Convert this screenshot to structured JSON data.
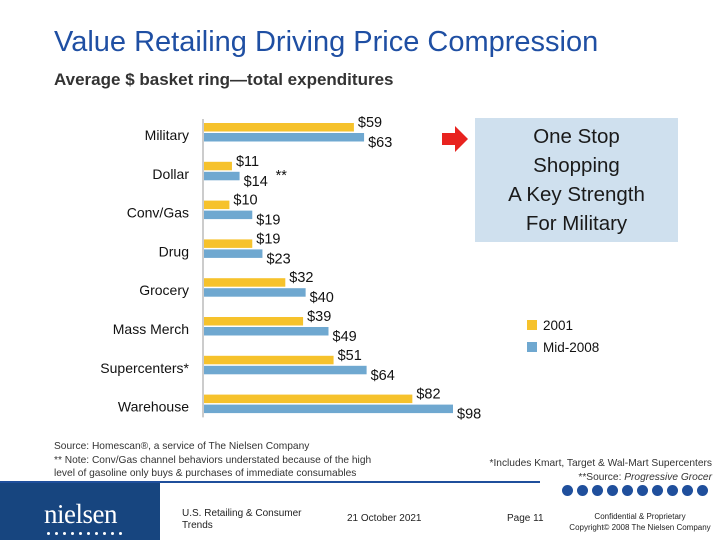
{
  "title": "Value Retailing Driving Price Compression",
  "subtitle": "Average $ basket ring—total expenditures",
  "chart_data": {
    "type": "bar",
    "orientation": "horizontal",
    "categories": [
      "Military",
      "Dollar",
      "Conv/Gas",
      "Drug",
      "Grocery",
      "Mass Merch",
      "Supercenters*",
      "Warehouse"
    ],
    "series": [
      {
        "name": "2001",
        "color": "#f6c22c",
        "values": [
          59,
          11,
          10,
          19,
          32,
          39,
          51,
          82
        ],
        "labels": [
          "$59",
          "$11",
          "$10",
          "$19",
          "$32",
          "$39",
          "$51",
          "$82"
        ]
      },
      {
        "name": "Mid-2008",
        "color": "#6fa8d0",
        "values": [
          63,
          14,
          19,
          23,
          40,
          49,
          64,
          98
        ],
        "labels": [
          "$63",
          "$14",
          "$19",
          "$23",
          "$40",
          "$49",
          "$64",
          "$98"
        ]
      }
    ],
    "annotations": [
      {
        "category": "Dollar",
        "text": "**"
      }
    ],
    "xlim": [
      0,
      100
    ],
    "grid": false,
    "legend": "right"
  },
  "callout": {
    "lines": [
      "One Stop",
      "Shopping",
      "A Key Strength",
      "For Military"
    ]
  },
  "legend": {
    "items": [
      "2001",
      "Mid-2008"
    ]
  },
  "notes": {
    "source": "Source: Homescan®, a service of The Nielsen Company",
    "note_line1": "** Note:  Conv/Gas channel behaviors understated because of the high",
    "note_line2": "level of gasoline only buys & purchases of immediate consumables",
    "includes": "*Includes Kmart, Target & Wal-Mart Supercenters",
    "source2_prefix": "**Source:  ",
    "source2_name": "Progressive Grocer"
  },
  "footer": {
    "logo": "nielsen",
    "dept_line1": "U.S. Retailing & Consumer",
    "dept_line2": "Trends",
    "date": "21 October 2021",
    "page": "Page 11",
    "confidential": "Confidential & Proprietary",
    "copyright": "Copyright© 2008 The Nielsen Company"
  },
  "colors": {
    "title": "#1f4fa3",
    "brand": "#17457f",
    "bar_2001": "#f6c22c",
    "bar_2008": "#6fa8d0",
    "callout_bg": "#cfe0ee"
  }
}
